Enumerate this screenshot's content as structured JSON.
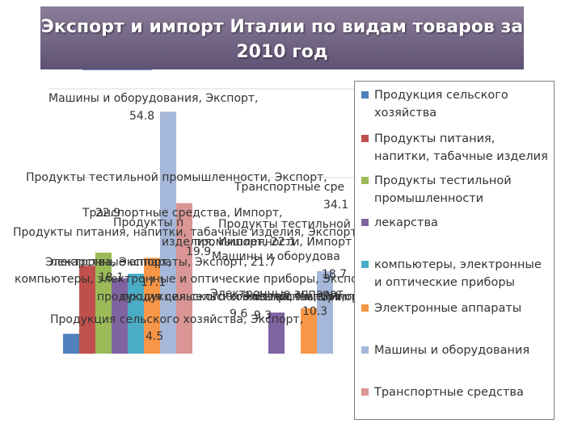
{
  "title": "Экспорт и импорт Италии по видам товаров за\n2010 год",
  "chart_data": {
    "type": "bar",
    "title": "Экспорт и импорт Италии по видам товаров за 2010 год",
    "categories": [
      "Экспорт",
      "Импорт"
    ],
    "ylim": [
      0,
      60
    ],
    "legend_position": "right",
    "grid": true,
    "series": [
      {
        "name": "Продукция сельского хозяйства",
        "color": "#4f81bd",
        "values": [
          4.5,
          null
        ]
      },
      {
        "name": "Продукты питания, напитки, табачные изделия",
        "color": "#c0504d",
        "values": [
          19.9,
          null
        ]
      },
      {
        "name": "Продукты тестильной промышленности",
        "color": "#9bbb59",
        "values": [
          22.9,
          null
        ]
      },
      {
        "name": "лекарства",
        "color": "#8064a2",
        "values": [
          17.1,
          9.3
        ]
      },
      {
        "name": "компьютеры, электронные и оптические приборы",
        "color": "#4bacc6",
        "values": [
          18.1,
          null
        ]
      },
      {
        "name": "Электронные аппараты",
        "color": "#f79646",
        "values": [
          21.7,
          10.3
        ]
      },
      {
        "name": "Машины и оборудования",
        "color": "#a6b8d9",
        "values": [
          54.8,
          18.7
        ]
      },
      {
        "name": "Транспортные средства",
        "color": "#d99694",
        "values": [
          34.1,
          null
        ]
      }
    ],
    "data_labels": [
      {
        "text": "Машины и оборудования, Экспорт,",
        "value": "54.8"
      },
      {
        "text": "Транспортные сре",
        "value": "34.1"
      },
      {
        "text": "Продукты тестильной промышленности, Экспорт,",
        "value": "22.9"
      },
      {
        "text": "Продукты питания, напитки, табачные изделия, Экспорт,",
        "value": "19.9"
      },
      {
        "text": "Электронные аппараты, Экспорт,",
        "value": "21.7"
      },
      {
        "text": "компьютеры, электронные и оптические приборы, Экспорт,",
        "value": "18.1"
      },
      {
        "text": "лекарства, Экспорт,",
        "value": "17.1"
      },
      {
        "text": "Продукция сельского хозяйства, Экспорт,",
        "value": "4.5"
      },
      {
        "text": "Машины и оборудова",
        "value": "18.7"
      },
      {
        "text": "",
        "value": "9.6"
      },
      {
        "text": "",
        "value": "9.3"
      },
      {
        "text": "",
        "value": "10.3"
      }
    ],
    "overlap_labels": [
      "Продукты п",
      "Продукты тестильной",
      "Транспортные средства, Импорт,",
      "изделия, Импорт, 22.1",
      "промышленности, Импорт",
      "Электронные аппарат",
      "продукция сельского хозяйства, Импорт,",
      "продукция сельского хозяйства, Импорт,",
      "Электронные, Импорт"
    ]
  }
}
